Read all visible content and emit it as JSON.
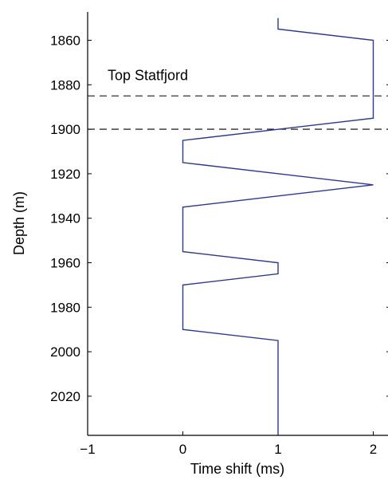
{
  "chart_data": {
    "type": "line",
    "xlabel": "Time shift (ms)",
    "ylabel": "Depth (m)",
    "xlim": [
      -1,
      2.15
    ],
    "ylim": [
      1850,
      2037
    ],
    "y_inverted": true,
    "xticks": [
      -1,
      0,
      1,
      2
    ],
    "xtick_labels": [
      "−1",
      "0",
      "1",
      "2"
    ],
    "yticks": [
      1860,
      1880,
      1900,
      1920,
      1940,
      1960,
      1980,
      2000,
      2020
    ],
    "ytick_labels": [
      "1860",
      "1880",
      "1900",
      "1920",
      "1940",
      "1960",
      "1980",
      "2000",
      "2020"
    ],
    "grid": false,
    "line_color": "#2b3990",
    "series": [
      {
        "x": [
          1,
          1,
          2,
          2,
          0,
          0,
          2,
          0,
          0,
          1,
          1,
          0,
          0,
          1,
          1
        ],
        "y": [
          1850,
          1855,
          1860,
          1895,
          1905,
          1915,
          1925,
          1935,
          1955,
          1960,
          1965,
          1970,
          1990,
          1995,
          2037
        ]
      }
    ],
    "reference_lines": [
      {
        "orientation": "horizontal",
        "y": 1885,
        "style": "dashed"
      },
      {
        "orientation": "horizontal",
        "y": 1900,
        "style": "dashed"
      }
    ],
    "annotations": [
      {
        "text": "Top Statfjord",
        "x": 0.25,
        "y": 1878
      }
    ]
  }
}
